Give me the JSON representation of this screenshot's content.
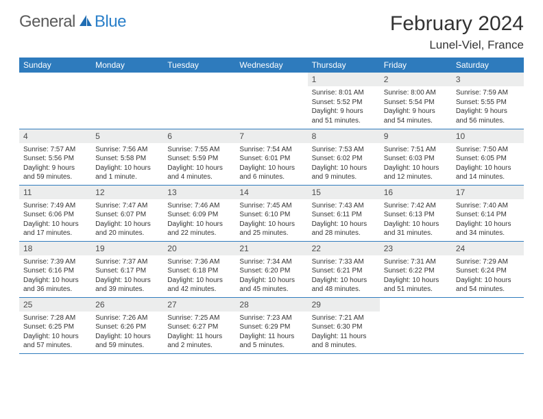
{
  "brand": {
    "part1": "General",
    "part2": "Blue"
  },
  "title": "February 2024",
  "location": "Lunel-Viel, France",
  "colors": {
    "header_bg": "#2e7bbd",
    "header_fg": "#ffffff",
    "daynum_bg": "#eceded",
    "row_border": "#2e7bbd",
    "logo_gray": "#5a5a5a",
    "logo_blue": "#2a7fc9"
  },
  "weekdays": [
    "Sunday",
    "Monday",
    "Tuesday",
    "Wednesday",
    "Thursday",
    "Friday",
    "Saturday"
  ],
  "layout": {
    "lead_blanks": 4,
    "days_in_month": 29
  },
  "days": [
    {
      "n": "1",
      "sr": "Sunrise: 8:01 AM",
      "ss": "Sunset: 5:52 PM",
      "dl1": "Daylight: 9 hours",
      "dl2": "and 51 minutes."
    },
    {
      "n": "2",
      "sr": "Sunrise: 8:00 AM",
      "ss": "Sunset: 5:54 PM",
      "dl1": "Daylight: 9 hours",
      "dl2": "and 54 minutes."
    },
    {
      "n": "3",
      "sr": "Sunrise: 7:59 AM",
      "ss": "Sunset: 5:55 PM",
      "dl1": "Daylight: 9 hours",
      "dl2": "and 56 minutes."
    },
    {
      "n": "4",
      "sr": "Sunrise: 7:57 AM",
      "ss": "Sunset: 5:56 PM",
      "dl1": "Daylight: 9 hours",
      "dl2": "and 59 minutes."
    },
    {
      "n": "5",
      "sr": "Sunrise: 7:56 AM",
      "ss": "Sunset: 5:58 PM",
      "dl1": "Daylight: 10 hours",
      "dl2": "and 1 minute."
    },
    {
      "n": "6",
      "sr": "Sunrise: 7:55 AM",
      "ss": "Sunset: 5:59 PM",
      "dl1": "Daylight: 10 hours",
      "dl2": "and 4 minutes."
    },
    {
      "n": "7",
      "sr": "Sunrise: 7:54 AM",
      "ss": "Sunset: 6:01 PM",
      "dl1": "Daylight: 10 hours",
      "dl2": "and 6 minutes."
    },
    {
      "n": "8",
      "sr": "Sunrise: 7:53 AM",
      "ss": "Sunset: 6:02 PM",
      "dl1": "Daylight: 10 hours",
      "dl2": "and 9 minutes."
    },
    {
      "n": "9",
      "sr": "Sunrise: 7:51 AM",
      "ss": "Sunset: 6:03 PM",
      "dl1": "Daylight: 10 hours",
      "dl2": "and 12 minutes."
    },
    {
      "n": "10",
      "sr": "Sunrise: 7:50 AM",
      "ss": "Sunset: 6:05 PM",
      "dl1": "Daylight: 10 hours",
      "dl2": "and 14 minutes."
    },
    {
      "n": "11",
      "sr": "Sunrise: 7:49 AM",
      "ss": "Sunset: 6:06 PM",
      "dl1": "Daylight: 10 hours",
      "dl2": "and 17 minutes."
    },
    {
      "n": "12",
      "sr": "Sunrise: 7:47 AM",
      "ss": "Sunset: 6:07 PM",
      "dl1": "Daylight: 10 hours",
      "dl2": "and 20 minutes."
    },
    {
      "n": "13",
      "sr": "Sunrise: 7:46 AM",
      "ss": "Sunset: 6:09 PM",
      "dl1": "Daylight: 10 hours",
      "dl2": "and 22 minutes."
    },
    {
      "n": "14",
      "sr": "Sunrise: 7:45 AM",
      "ss": "Sunset: 6:10 PM",
      "dl1": "Daylight: 10 hours",
      "dl2": "and 25 minutes."
    },
    {
      "n": "15",
      "sr": "Sunrise: 7:43 AM",
      "ss": "Sunset: 6:11 PM",
      "dl1": "Daylight: 10 hours",
      "dl2": "and 28 minutes."
    },
    {
      "n": "16",
      "sr": "Sunrise: 7:42 AM",
      "ss": "Sunset: 6:13 PM",
      "dl1": "Daylight: 10 hours",
      "dl2": "and 31 minutes."
    },
    {
      "n": "17",
      "sr": "Sunrise: 7:40 AM",
      "ss": "Sunset: 6:14 PM",
      "dl1": "Daylight: 10 hours",
      "dl2": "and 34 minutes."
    },
    {
      "n": "18",
      "sr": "Sunrise: 7:39 AM",
      "ss": "Sunset: 6:16 PM",
      "dl1": "Daylight: 10 hours",
      "dl2": "and 36 minutes."
    },
    {
      "n": "19",
      "sr": "Sunrise: 7:37 AM",
      "ss": "Sunset: 6:17 PM",
      "dl1": "Daylight: 10 hours",
      "dl2": "and 39 minutes."
    },
    {
      "n": "20",
      "sr": "Sunrise: 7:36 AM",
      "ss": "Sunset: 6:18 PM",
      "dl1": "Daylight: 10 hours",
      "dl2": "and 42 minutes."
    },
    {
      "n": "21",
      "sr": "Sunrise: 7:34 AM",
      "ss": "Sunset: 6:20 PM",
      "dl1": "Daylight: 10 hours",
      "dl2": "and 45 minutes."
    },
    {
      "n": "22",
      "sr": "Sunrise: 7:33 AM",
      "ss": "Sunset: 6:21 PM",
      "dl1": "Daylight: 10 hours",
      "dl2": "and 48 minutes."
    },
    {
      "n": "23",
      "sr": "Sunrise: 7:31 AM",
      "ss": "Sunset: 6:22 PM",
      "dl1": "Daylight: 10 hours",
      "dl2": "and 51 minutes."
    },
    {
      "n": "24",
      "sr": "Sunrise: 7:29 AM",
      "ss": "Sunset: 6:24 PM",
      "dl1": "Daylight: 10 hours",
      "dl2": "and 54 minutes."
    },
    {
      "n": "25",
      "sr": "Sunrise: 7:28 AM",
      "ss": "Sunset: 6:25 PM",
      "dl1": "Daylight: 10 hours",
      "dl2": "and 57 minutes."
    },
    {
      "n": "26",
      "sr": "Sunrise: 7:26 AM",
      "ss": "Sunset: 6:26 PM",
      "dl1": "Daylight: 10 hours",
      "dl2": "and 59 minutes."
    },
    {
      "n": "27",
      "sr": "Sunrise: 7:25 AM",
      "ss": "Sunset: 6:27 PM",
      "dl1": "Daylight: 11 hours",
      "dl2": "and 2 minutes."
    },
    {
      "n": "28",
      "sr": "Sunrise: 7:23 AM",
      "ss": "Sunset: 6:29 PM",
      "dl1": "Daylight: 11 hours",
      "dl2": "and 5 minutes."
    },
    {
      "n": "29",
      "sr": "Sunrise: 7:21 AM",
      "ss": "Sunset: 6:30 PM",
      "dl1": "Daylight: 11 hours",
      "dl2": "and 8 minutes."
    }
  ]
}
